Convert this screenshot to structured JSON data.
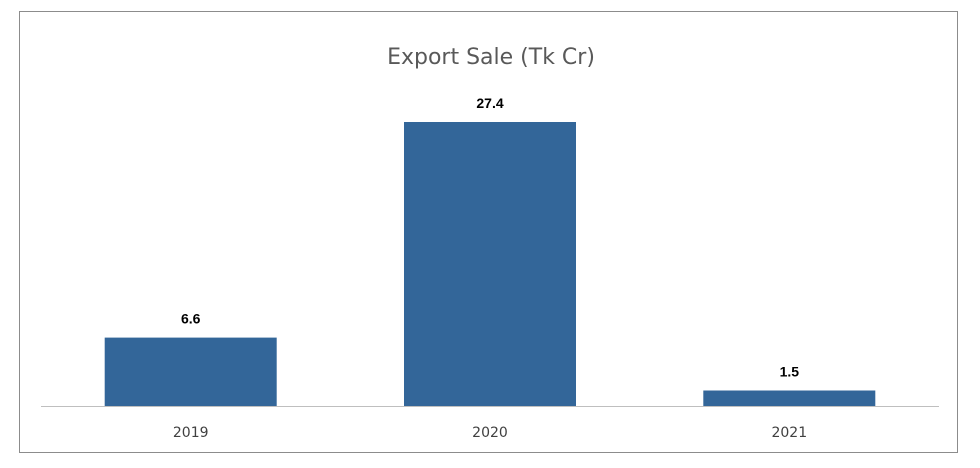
{
  "chart_data": {
    "type": "bar",
    "title": "Export Sale (Tk Cr)",
    "categories": [
      "2019",
      "2020",
      "2021"
    ],
    "values": [
      6.6,
      27.4,
      1.5
    ],
    "data_labels": [
      "6.6",
      "27.4",
      "1.5"
    ],
    "xlabel": "",
    "ylabel": "",
    "ylim": [
      0,
      27.4
    ],
    "grid": false,
    "legend": "none",
    "colors": {
      "bar": "#336699",
      "axis": "#bfbfbf",
      "title": "#595959"
    }
  }
}
